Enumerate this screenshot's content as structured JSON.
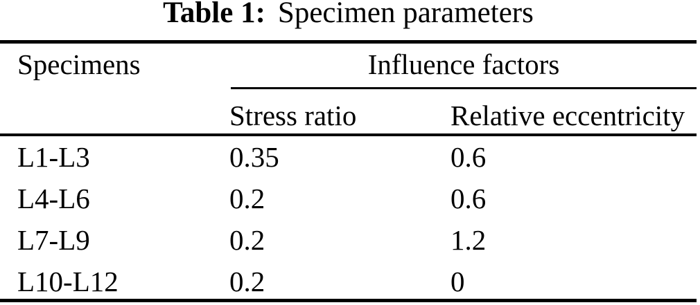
{
  "caption": {
    "label": "Table 1:",
    "text": "Specimen parameters"
  },
  "table": {
    "headers": {
      "specimens": "Specimens",
      "influence_factors": "Influence factors",
      "stress_ratio": "Stress ratio",
      "relative_eccentricity": "Relative eccentricity"
    },
    "rows": [
      {
        "specimen": "L1-L3",
        "stress_ratio": "0.35",
        "relative_eccentricity": "0.6"
      },
      {
        "specimen": "L4-L6",
        "stress_ratio": "0.2",
        "relative_eccentricity": "0.6"
      },
      {
        "specimen": "L7-L9",
        "stress_ratio": "0.2",
        "relative_eccentricity": "1.2"
      },
      {
        "specimen": "L10-L12",
        "stress_ratio": "0.2",
        "relative_eccentricity": "0"
      }
    ]
  },
  "colors": {
    "text": "#000000",
    "background": "#ffffff",
    "rule": "#000000"
  }
}
